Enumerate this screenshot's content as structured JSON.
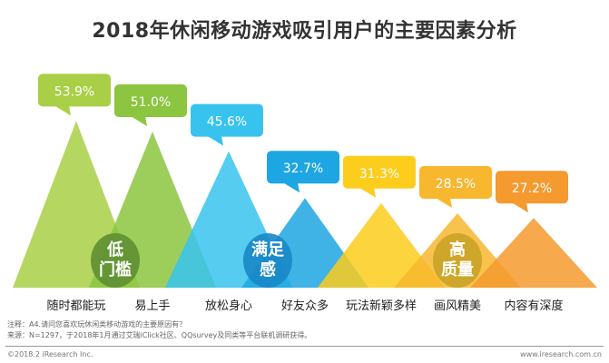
{
  "chart_data": {
    "type": "bar",
    "title": "2018年休闲移动游戏吸引用户的主要因素分析",
    "categories": [
      "随时都能玩",
      "易上手",
      "放松身心",
      "好友众多",
      "玩法新颖多样",
      "画风精美",
      "内容有深度"
    ],
    "values": [
      53.9,
      51.0,
      45.6,
      32.7,
      31.3,
      28.5,
      27.2
    ],
    "value_labels": [
      "53.9%",
      "51.0%",
      "45.6%",
      "32.7%",
      "31.3%",
      "28.5%",
      "27.2%"
    ],
    "colors": [
      "#a9cf46",
      "#8cc540",
      "#38c3ef",
      "#1ea6e2",
      "#fccd1c",
      "#f7b72f",
      "#f49a2e"
    ],
    "groups": [
      {
        "label_lines": [
          "低",
          "门槛"
        ],
        "color": "#5f8f33"
      },
      {
        "label_lines": [
          "满足",
          "感"
        ],
        "color": "#1a87c6"
      },
      {
        "label_lines": [
          "高",
          "质量"
        ],
        "color": "#c9a326"
      }
    ],
    "grid": false,
    "legend": "none"
  },
  "notes": {
    "note": "注释：A4.请问您喜欢玩休闲类移动游戏的主要原因有？",
    "source": "来源：N=1297，于2018年1月通过艾瑞iClick社区、QQsurvey及同类等平台联机调研获得。"
  },
  "footer": {
    "copyright": "©2018.2 iResearch Inc.",
    "website": "www.iresearch.com.cn"
  }
}
